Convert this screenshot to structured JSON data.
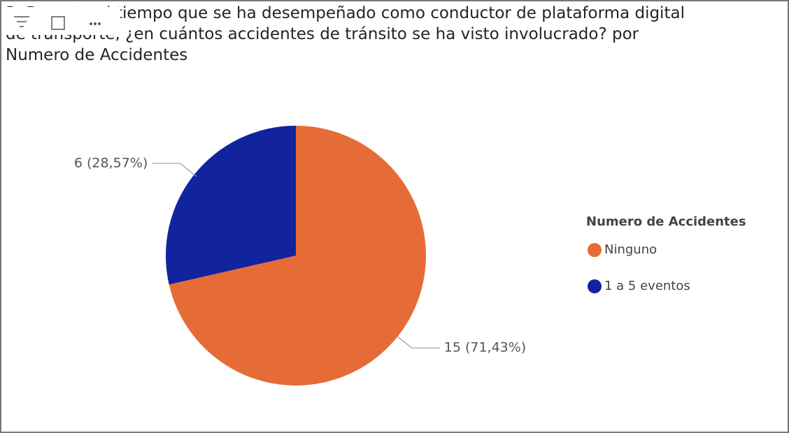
{
  "chart_data": {
    "type": "pie",
    "title": "3. Durante el tiempo que se ha desempeñado como conductor de plataforma digital de transporte, ¿en cuántos accidentes de tránsito se ha visto involucrado? por Numero de Accidentes",
    "legend_title": "Numero de Accidentes",
    "categories": [
      "Ninguno",
      "1 a 5 eventos"
    ],
    "values": [
      15,
      6
    ],
    "value_labels": [
      "15 (71,43%)",
      "6 (28,57%)"
    ],
    "colors": [
      "#E66C37",
      "#12239E"
    ],
    "legend": "right"
  }
}
